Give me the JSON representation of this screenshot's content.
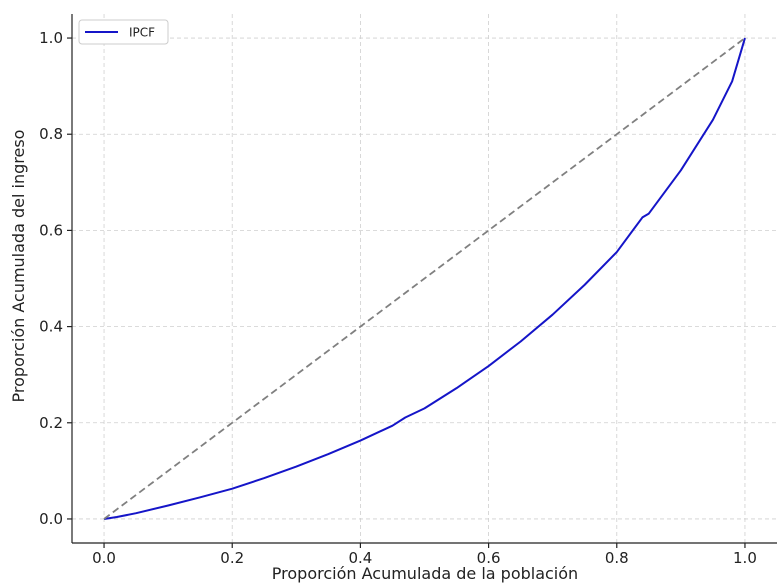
{
  "chart_data": {
    "type": "line",
    "xlabel": "Proporción Acumulada de la población",
    "ylabel": "Proporción Acumulada del ingreso",
    "xlim": [
      -0.05,
      1.05
    ],
    "ylim": [
      -0.05,
      1.05
    ],
    "xticks": [
      0.0,
      0.2,
      0.4,
      0.6,
      0.8,
      1.0
    ],
    "yticks": [
      0.0,
      0.2,
      0.4,
      0.6,
      0.8,
      1.0
    ],
    "xtick_labels": [
      "0.0",
      "0.2",
      "0.4",
      "0.6",
      "0.8",
      "1.0"
    ],
    "ytick_labels": [
      "0.0",
      "0.2",
      "0.4",
      "0.6",
      "0.8",
      "1.0"
    ],
    "grid": true,
    "legend_position": "top-left",
    "series": [
      {
        "name": "IPCF",
        "color": "#1515c8",
        "style": "solid",
        "x": [
          0.0,
          0.02,
          0.05,
          0.1,
          0.15,
          0.2,
          0.25,
          0.3,
          0.35,
          0.4,
          0.45,
          0.47,
          0.5,
          0.55,
          0.6,
          0.65,
          0.7,
          0.75,
          0.8,
          0.84,
          0.85,
          0.9,
          0.95,
          0.98,
          1.0
        ],
        "y": [
          0.0,
          0.004,
          0.012,
          0.028,
          0.045,
          0.063,
          0.085,
          0.109,
          0.135,
          0.163,
          0.194,
          0.211,
          0.23,
          0.272,
          0.318,
          0.369,
          0.425,
          0.487,
          0.555,
          0.627,
          0.635,
          0.725,
          0.83,
          0.91,
          1.0
        ]
      },
      {
        "color": "#808080",
        "style": "dashed",
        "x": [
          0.0,
          1.0
        ],
        "y": [
          0.0,
          1.0
        ]
      }
    ]
  }
}
